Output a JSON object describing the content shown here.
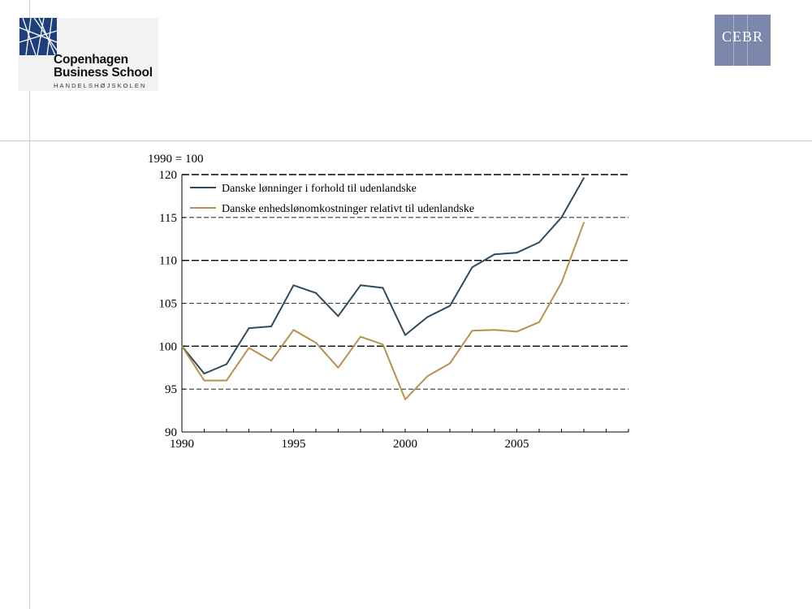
{
  "logos": {
    "cbs": {
      "line1": "Copenhagen",
      "line2": "Business School",
      "sub": "HANDELSHØJSKOLEN"
    },
    "cebr": {
      "text": "CEBR"
    }
  },
  "colors": {
    "series1": "#2e4b5e",
    "series2": "#b8924b",
    "cbs_blue": "#1e3f7b",
    "cebr_bg": "#7b88ab"
  },
  "chart_data": {
    "type": "line",
    "index_label": "1990 = 100",
    "xlim": [
      1990,
      2010
    ],
    "ylim": [
      90,
      120
    ],
    "yticks": [
      90,
      95,
      100,
      105,
      110,
      115,
      120
    ],
    "xticks": [
      1990,
      1995,
      2000,
      2005
    ],
    "legend_position": "top-left",
    "series": [
      {
        "name": "Danske lønninger i forhold til udenlandske",
        "color": "#2e4b5e",
        "x": [
          1990,
          1991,
          1992,
          1993,
          1994,
          1995,
          1996,
          1997,
          1998,
          1999,
          2000,
          2001,
          2002,
          2003,
          2004,
          2005,
          2006,
          2007,
          2008
        ],
        "values": [
          100,
          96.8,
          97.9,
          102.1,
          102.3,
          107.1,
          106.2,
          103.5,
          107.1,
          106.8,
          101.3,
          103.4,
          104.7,
          109.2,
          110.7,
          110.9,
          112.1,
          115.0,
          119.6
        ]
      },
      {
        "name": "Danske enhedslønomkostninger relativt til udenlandske",
        "color": "#b8924b",
        "x": [
          1990,
          1991,
          1992,
          1993,
          1994,
          1995,
          1996,
          1997,
          1998,
          1999,
          2000,
          2001,
          2002,
          2003,
          2004,
          2005,
          2006,
          2007,
          2008
        ],
        "values": [
          100,
          96.0,
          96.0,
          99.8,
          98.3,
          101.9,
          100.4,
          97.5,
          101.1,
          100.2,
          93.8,
          96.5,
          98.0,
          101.8,
          101.9,
          101.7,
          102.8,
          107.4,
          114.4
        ]
      }
    ]
  }
}
